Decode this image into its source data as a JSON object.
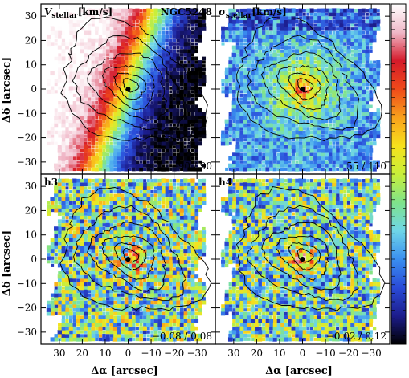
{
  "figure": {
    "xlabel": "Δα [arcsec]",
    "ylabel": "Δδ [arcsec]",
    "colorbar_colors": [
      "#000000",
      "#1c1c8c",
      "#2a4bd8",
      "#3a8ff0",
      "#6fd6e8",
      "#7fe38a",
      "#c8ef3a",
      "#f7e11c",
      "#f8a11c",
      "#f04a1a",
      "#d51a2a",
      "#f0b8c8",
      "#ffffff"
    ]
  },
  "chart_data": [
    {
      "type": "heatmap",
      "panel": "V_stellar",
      "label_main": "V",
      "label_sub": "stellar",
      "label_unit": "[km/s]",
      "object": "NGC5248",
      "range_text": "−90 / 90",
      "vmin": -90,
      "vmax": 90,
      "xlim": [
        38,
        -38
      ],
      "ylim": [
        -35,
        35
      ],
      "xticks": [
        30,
        20,
        10,
        0,
        -10,
        -20,
        -30
      ],
      "yticks": [
        30,
        20,
        10,
        0,
        -10,
        -20,
        -30
      ]
    },
    {
      "type": "heatmap",
      "panel": "sigma_stellar",
      "label_main": "σ",
      "label_sub": "stellar",
      "label_unit": "[km/s]",
      "range_text": "55 / 110",
      "vmin": 55,
      "vmax": 110,
      "xlim": [
        38,
        -38
      ],
      "ylim": [
        -35,
        35
      ],
      "xticks": [
        30,
        20,
        10,
        0,
        -10,
        -20,
        -30
      ],
      "yticks": [
        30,
        20,
        10,
        0,
        -10,
        -20,
        -30
      ]
    },
    {
      "type": "heatmap",
      "panel": "h3",
      "label_main": "h3",
      "range_text": "−0.08 / 0.08",
      "vmin": -0.08,
      "vmax": 0.08,
      "xlim": [
        38,
        -38
      ],
      "ylim": [
        -35,
        35
      ],
      "xticks": [
        30,
        20,
        10,
        0,
        -10,
        -20,
        -30
      ],
      "yticks": [
        30,
        20,
        10,
        0,
        -10,
        -20,
        -30
      ]
    },
    {
      "type": "heatmap",
      "panel": "h4",
      "label_main": "h4",
      "range_text": "−0.02 / 0.12",
      "vmin": -0.02,
      "vmax": 0.12,
      "xlim": [
        38,
        -38
      ],
      "ylim": [
        -35,
        35
      ],
      "xticks": [
        30,
        20,
        10,
        0,
        -10,
        -20,
        -30
      ],
      "yticks": [
        30,
        20,
        10,
        0,
        -10,
        -20,
        -30
      ]
    }
  ]
}
